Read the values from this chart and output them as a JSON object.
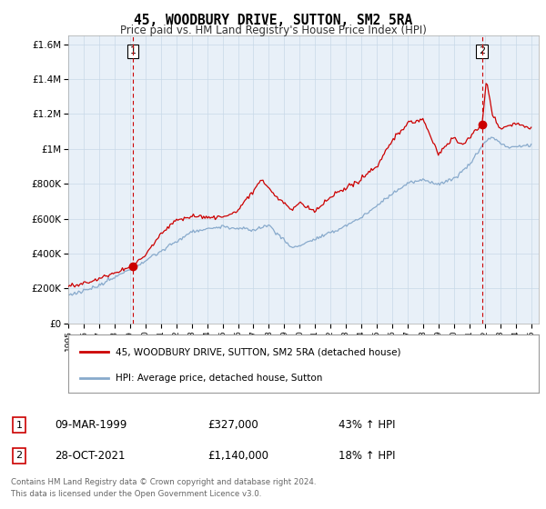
{
  "title": "45, WOODBURY DRIVE, SUTTON, SM2 5RA",
  "subtitle": "Price paid vs. HM Land Registry's House Price Index (HPI)",
  "legend_line1": "45, WOODBURY DRIVE, SUTTON, SM2 5RA (detached house)",
  "legend_line2": "HPI: Average price, detached house, Sutton",
  "sale1_date": "09-MAR-1999",
  "sale1_price": "£327,000",
  "sale1_hpi": "43% ↑ HPI",
  "sale1_year": 1999.19,
  "sale1_value": 327000,
  "sale2_date": "28-OCT-2021",
  "sale2_price": "£1,140,000",
  "sale2_hpi": "18% ↑ HPI",
  "sale2_year": 2021.82,
  "sale2_value": 1140000,
  "footer1": "Contains HM Land Registry data © Crown copyright and database right 2024.",
  "footer2": "This data is licensed under the Open Government Licence v3.0.",
  "red_color": "#CC0000",
  "blue_color": "#88AACC",
  "bg_color": "#E8F0F8",
  "grid_color": "#C8D8E8",
  "ylim_max": 1650000,
  "ylim_min": 0
}
